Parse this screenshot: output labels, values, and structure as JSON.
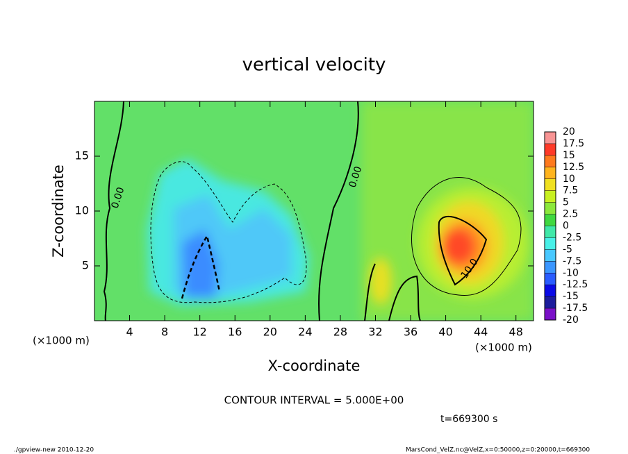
{
  "chart_data": {
    "type": "contour",
    "title": "vertical velocity",
    "xlabel": "X-coordinate",
    "ylabel": "Z-coordinate",
    "x_unit": "(×1000 m)",
    "x_unit_right": "(×1000 m)",
    "xlim": [
      0,
      50
    ],
    "ylim": [
      0,
      20
    ],
    "xticks": [
      4,
      8,
      12,
      16,
      20,
      24,
      28,
      32,
      36,
      40,
      44,
      48
    ],
    "yticks": [
      5,
      10,
      15
    ],
    "colorbar": {
      "ticks": [
        -20,
        -17.5,
        -15,
        -12.5,
        -10,
        -7.5,
        -5,
        -2.5,
        0,
        2.5,
        5,
        7.5,
        10,
        12.5,
        15,
        17.5,
        20
      ],
      "colors": [
        "#7a10c8",
        "#1c1c9c",
        "#0a0ae6",
        "#2a5cff",
        "#3a96ff",
        "#48c8ff",
        "#48f0e8",
        "#40e8a8",
        "#40d840",
        "#8ce83c",
        "#c8f020",
        "#f0e020",
        "#ffb41e",
        "#ff7a1e",
        "#ff3a28",
        "#f89494"
      ]
    },
    "contour_labels": [
      "0.00",
      "0.00",
      "10.0"
    ],
    "annotation": "CONTOUR INTERVAL = 5.000E+00",
    "time_label": "t=669300 s",
    "footer_left": "./gpview-new  2010-12-20",
    "footer_right": "MarsCond_VelZ.nc@VelZ,x=0:50000,z=0:20000,t=669300"
  }
}
